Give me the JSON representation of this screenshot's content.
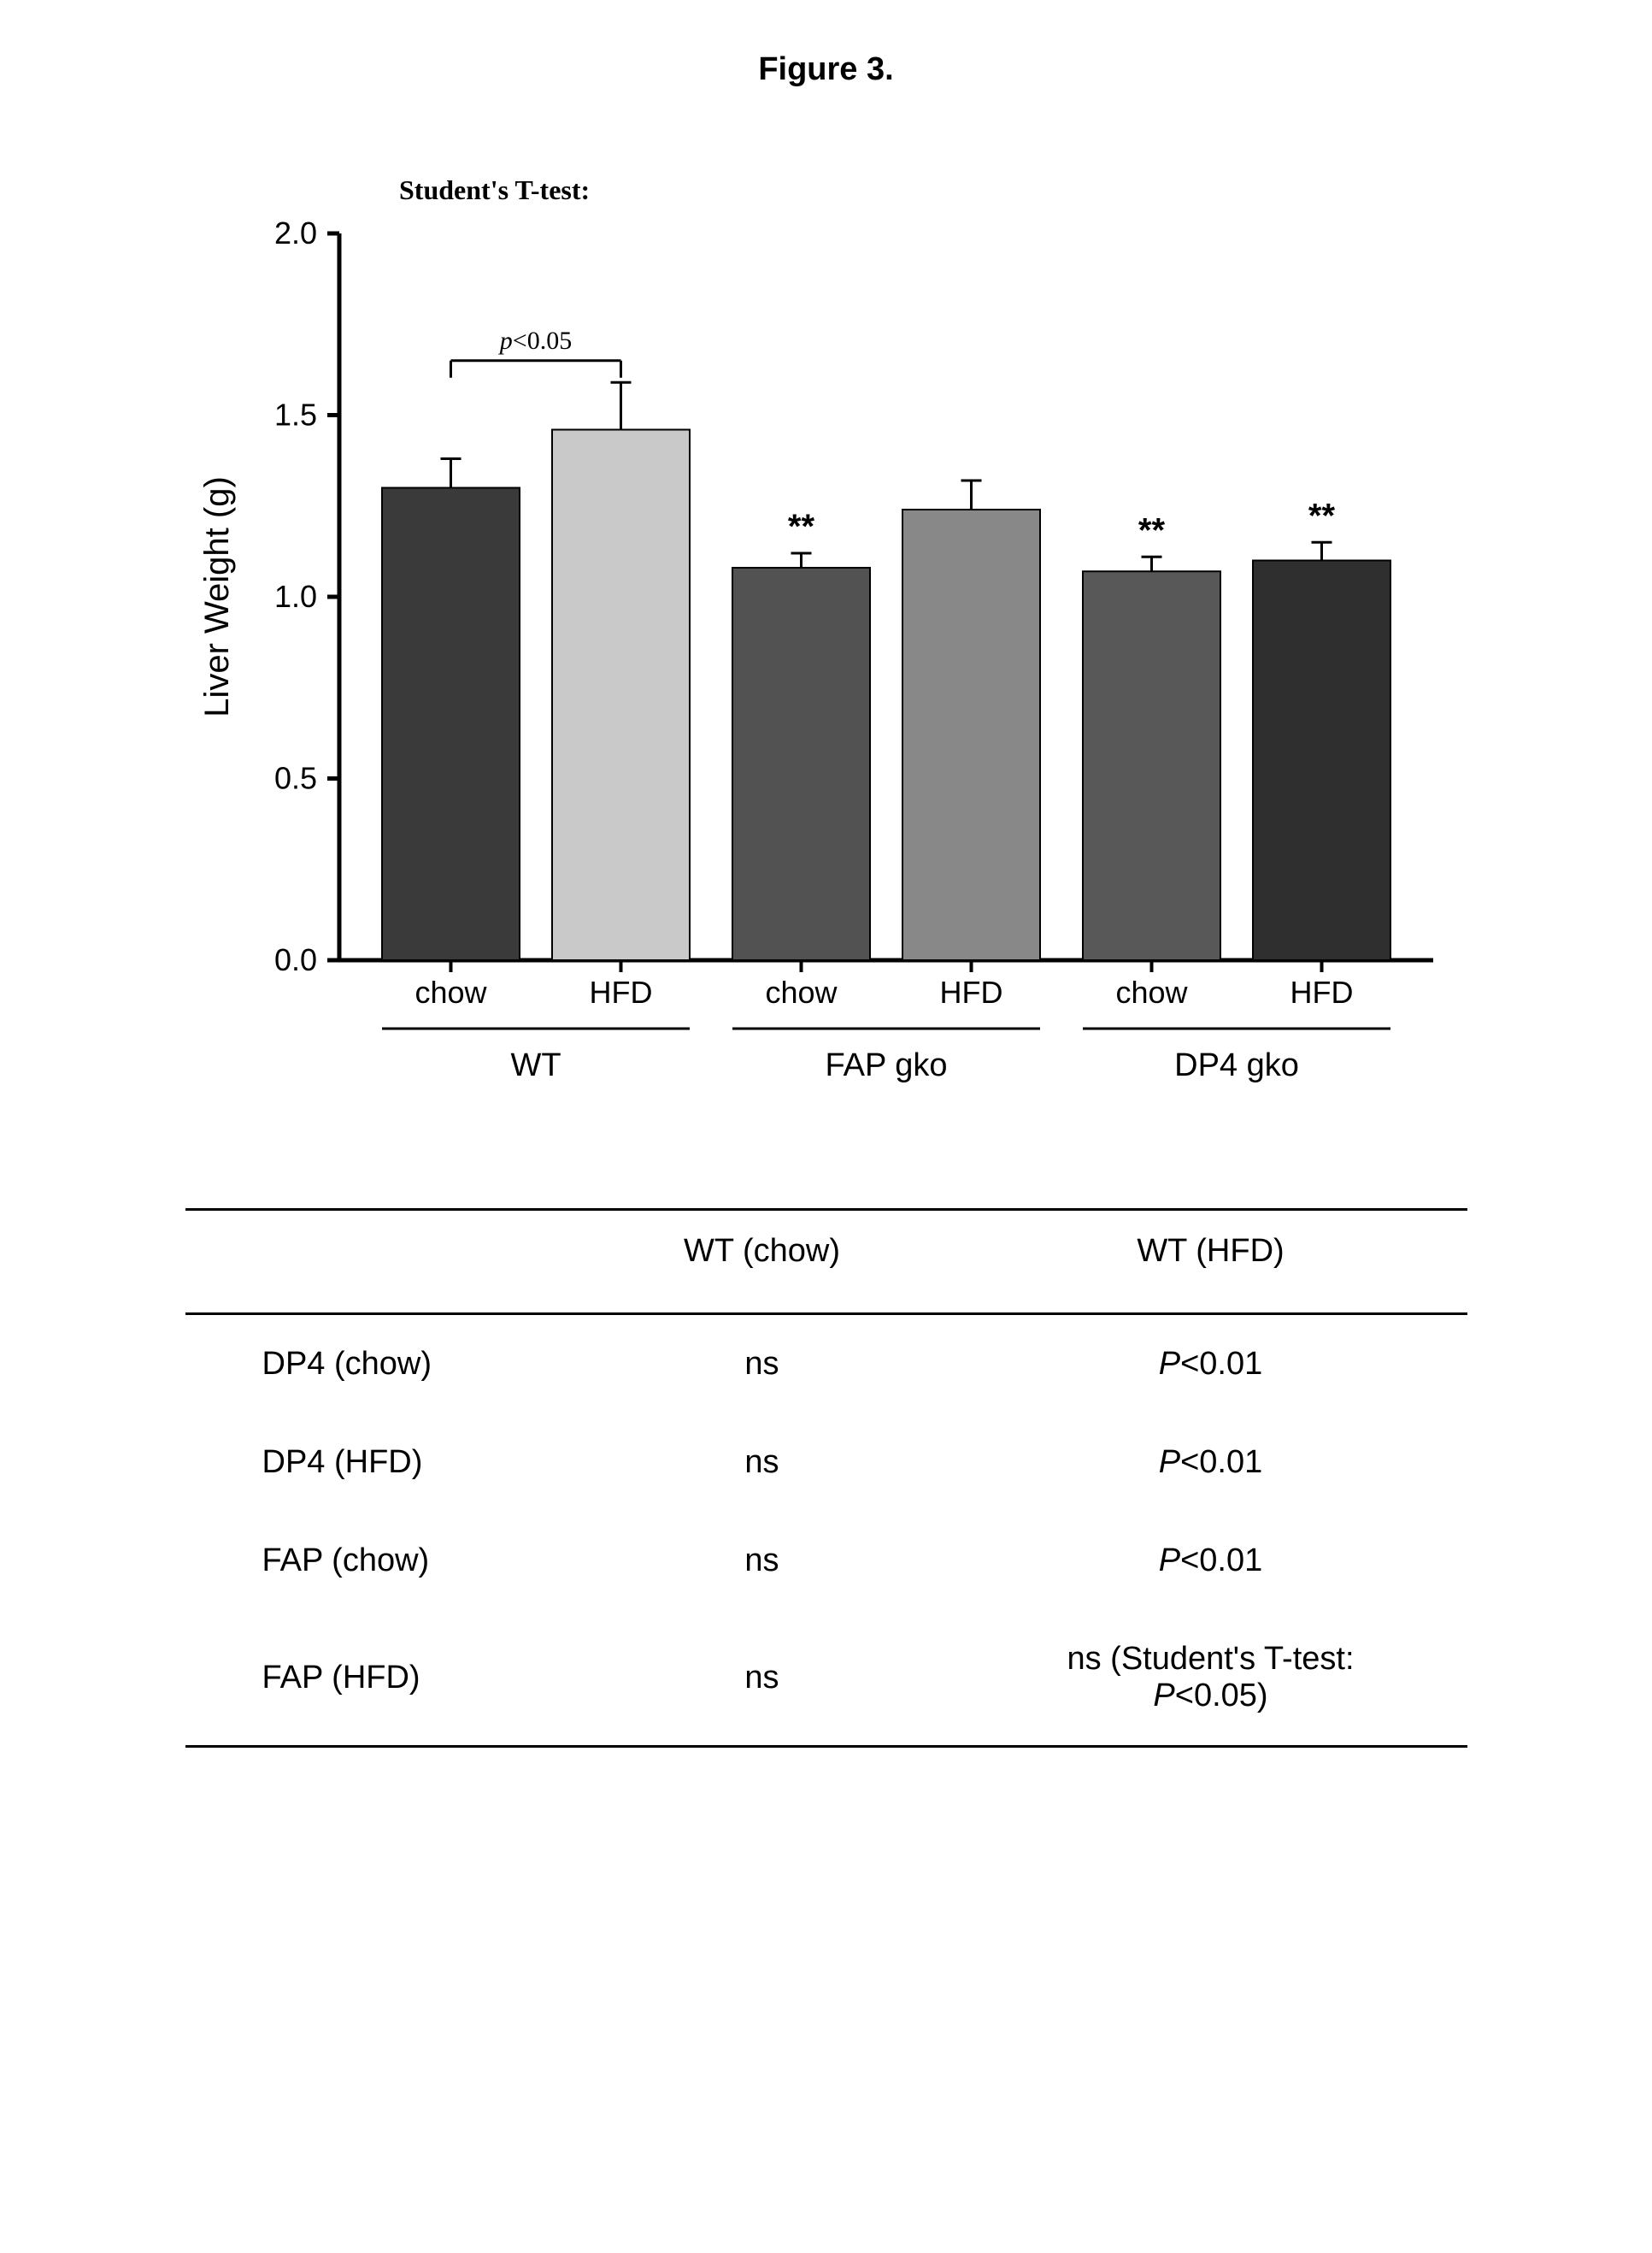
{
  "figure_title": "Figure 3.",
  "chart": {
    "type": "bar",
    "y_label": "Liver Weight (g)",
    "y_label_fontsize": 40,
    "ylim": [
      0.0,
      2.0
    ],
    "ytick_step": 0.5,
    "yticks": [
      "0.0",
      "0.5",
      "1.0",
      "1.5",
      "2.0"
    ],
    "tick_fontsize": 36,
    "axis_color": "#000000",
    "axis_width": 5,
    "tick_length": 14,
    "background_color": "#ffffff",
    "bar_stroke": "#000000",
    "bar_stroke_width": 2,
    "errorbar_color": "#000000",
    "errorbar_width": 3,
    "errorbar_cap": 24,
    "groups": [
      {
        "label": "WT",
        "sub": [
          "chow",
          "HFD"
        ]
      },
      {
        "label": "FAP gko",
        "sub": [
          "chow",
          "HFD"
        ]
      },
      {
        "label": "DP4 gko",
        "sub": [
          "chow",
          "HFD"
        ]
      }
    ],
    "bars": [
      {
        "group": 0,
        "sub": 0,
        "value": 1.3,
        "err": 0.08,
        "fill": "#3a3a3a",
        "sig": null
      },
      {
        "group": 0,
        "sub": 1,
        "value": 1.46,
        "err": 0.13,
        "fill": "#c9c9c9",
        "sig": null
      },
      {
        "group": 1,
        "sub": 0,
        "value": 1.08,
        "err": 0.04,
        "fill": "#525252",
        "sig": "**"
      },
      {
        "group": 1,
        "sub": 1,
        "value": 1.24,
        "err": 0.08,
        "fill": "#888888",
        "sig": null
      },
      {
        "group": 2,
        "sub": 0,
        "value": 1.07,
        "err": 0.04,
        "fill": "#585858",
        "sig": "**"
      },
      {
        "group": 2,
        "sub": 1,
        "value": 1.1,
        "err": 0.05,
        "fill": "#2f2f2f",
        "sig": "**"
      }
    ],
    "sig_fontsize": 40,
    "annotation": {
      "title": "Student's T-test:",
      "title_fontsize": 32,
      "bracket_label": "p<0.05",
      "bracket_bars": [
        0,
        1
      ],
      "bracket_label_fontsize": 30
    },
    "sub_label_fontsize": 36,
    "group_label_fontsize": 38,
    "group_underline_width": 3
  },
  "table": {
    "columns": [
      "",
      "WT (chow)",
      "WT (HFD)"
    ],
    "rows": [
      {
        "label": "DP4 (chow)",
        "c1": "ns",
        "c2_html": "<span class=\"pval-italic\">P</span><0.01"
      },
      {
        "label": "DP4 (HFD)",
        "c1": "ns",
        "c2_html": "<span class=\"pval-italic\">P</span><0.01"
      },
      {
        "label": "FAP (chow)",
        "c1": "ns",
        "c2_html": "<span class=\"pval-italic\">P</span><0.01"
      },
      {
        "label": "FAP (HFD)",
        "c1": "ns",
        "c2_html": "ns (Student's T-test:<br><span class=\"pval-italic\">P</span><0.05)"
      }
    ],
    "font_size": 38,
    "border_color": "#000000",
    "col_widths_pct": [
      30,
      30,
      40
    ]
  }
}
